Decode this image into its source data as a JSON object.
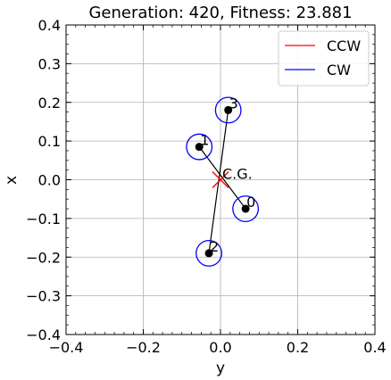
{
  "chart_data": {
    "type": "scatter",
    "title": "Generation: 420, Fitness: 23.881",
    "xlabel": "y",
    "ylabel": "x",
    "xlim": [
      -0.4,
      0.4
    ],
    "ylim": [
      -0.4,
      0.4
    ],
    "xticks": [
      -0.4,
      -0.2,
      0.0,
      0.2,
      0.4
    ],
    "yticks": [
      -0.4,
      -0.3,
      -0.2,
      -0.1,
      0.0,
      0.1,
      0.2,
      0.3,
      0.4
    ],
    "xtick_labels": [
      "−0.4",
      "−0.2",
      "0.0",
      "0.2",
      "0.4"
    ],
    "ytick_labels": [
      "−0.4",
      "−0.3",
      "−0.2",
      "−0.1",
      "0.0",
      "0.1",
      "0.2",
      "0.3",
      "0.4"
    ],
    "grid": true,
    "legend_position": "top-right",
    "legend": [
      {
        "label": "CCW",
        "color": "#ff0000"
      },
      {
        "label": "CW",
        "color": "#0000ff"
      }
    ],
    "rotors": [
      {
        "label": "0",
        "x": 0.065,
        "y": -0.075,
        "radius": 0.033,
        "direction": "CW"
      },
      {
        "label": "1",
        "x": -0.055,
        "y": 0.085,
        "radius": 0.033,
        "direction": "CW"
      },
      {
        "label": "2",
        "x": -0.03,
        "y": -0.19,
        "radius": 0.033,
        "direction": "CW"
      },
      {
        "label": "3",
        "x": 0.02,
        "y": 0.18,
        "radius": 0.033,
        "direction": "CW"
      }
    ],
    "arms": [
      [
        "1",
        "0"
      ],
      [
        "2",
        "3"
      ]
    ],
    "center_of_gravity": {
      "label": "C.G.",
      "x": 0.0,
      "y": 0.0,
      "color": "#ff0000"
    }
  }
}
